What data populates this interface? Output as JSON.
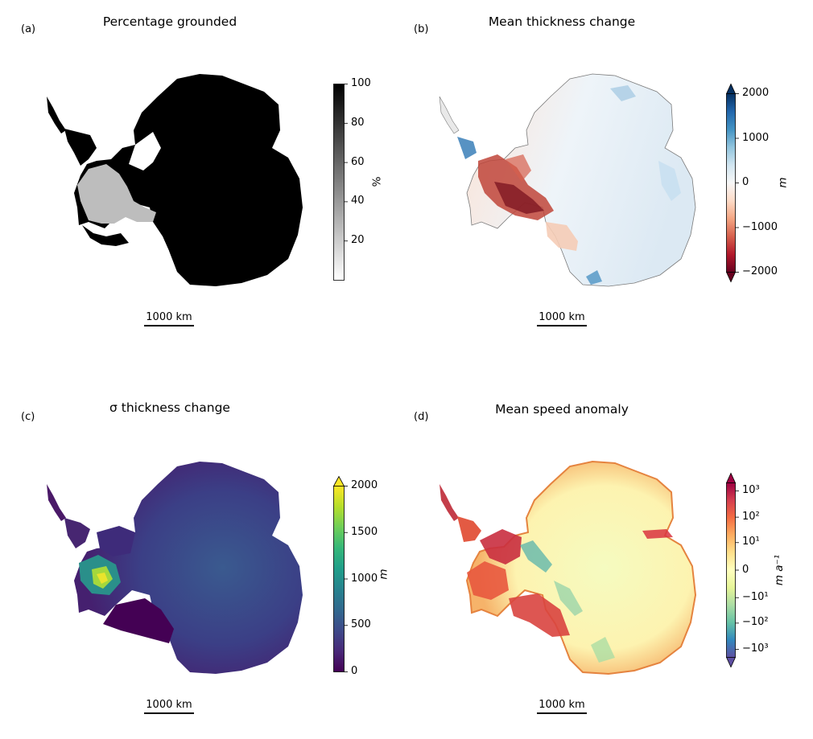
{
  "chart_data": [
    {
      "type": "heatmap",
      "panel_label": "(a)",
      "title": "Percentage grounded",
      "colormap": "Greys",
      "colorbar": {
        "label": "%",
        "ticks": [
          "20",
          "40",
          "60",
          "80",
          "100"
        ],
        "tick_values": [
          20,
          40,
          60,
          80,
          100
        ],
        "range": [
          0,
          100
        ],
        "extend": "neither"
      },
      "scalebar": "1000 km"
    },
    {
      "type": "heatmap",
      "panel_label": "(b)",
      "title": "Mean thickness change",
      "colormap": "RdBu",
      "colorbar": {
        "label": "m",
        "ticks": [
          "−2000",
          "−1000",
          "0",
          "1000",
          "2000"
        ],
        "tick_values": [
          -2000,
          -1000,
          0,
          1000,
          2000
        ],
        "range": [
          -2000,
          2000
        ],
        "extend": "both"
      },
      "scalebar": "1000 km"
    },
    {
      "type": "heatmap",
      "panel_label": "(c)",
      "title": "σ thickness change",
      "colormap": "viridis",
      "colorbar": {
        "label": "m",
        "ticks": [
          "0",
          "500",
          "1000",
          "1500",
          "2000"
        ],
        "tick_values": [
          0,
          500,
          1000,
          1500,
          2000
        ],
        "range": [
          0,
          2000
        ],
        "extend": "max"
      },
      "scalebar": "1000 km"
    },
    {
      "type": "heatmap",
      "panel_label": "(d)",
      "title": "Mean speed anomaly",
      "colormap": "Spectral_r",
      "colorbar": {
        "label": "m a⁻¹",
        "ticks": [
          "−10³",
          "−10²",
          "−10¹",
          "0",
          "10¹",
          "10²",
          "10³"
        ],
        "tick_values": [
          -1000,
          -100,
          -10,
          0,
          10,
          100,
          1000
        ],
        "scale": "symlog",
        "extend": "both"
      },
      "scalebar": "1000 km"
    }
  ],
  "colors": {
    "greys": [
      "#ffffff",
      "#000000"
    ],
    "rdbu": [
      "#67001f",
      "#b2182b",
      "#d6604d",
      "#f4a582",
      "#fddbc7",
      "#f7f7f7",
      "#d1e5f0",
      "#92c5de",
      "#4393c3",
      "#2166ac",
      "#053061"
    ],
    "viridis": [
      "#440154",
      "#482878",
      "#3e4989",
      "#31688e",
      "#26828e",
      "#1f9e89",
      "#35b779",
      "#6ece58",
      "#b5de2b",
      "#fde725"
    ],
    "spectral_r": [
      "#5e4fa2",
      "#3288bd",
      "#66c2a5",
      "#abdda4",
      "#e6f598",
      "#ffffbf",
      "#fee08b",
      "#fdae61",
      "#f46d43",
      "#d53e4f",
      "#9e0142"
    ]
  }
}
